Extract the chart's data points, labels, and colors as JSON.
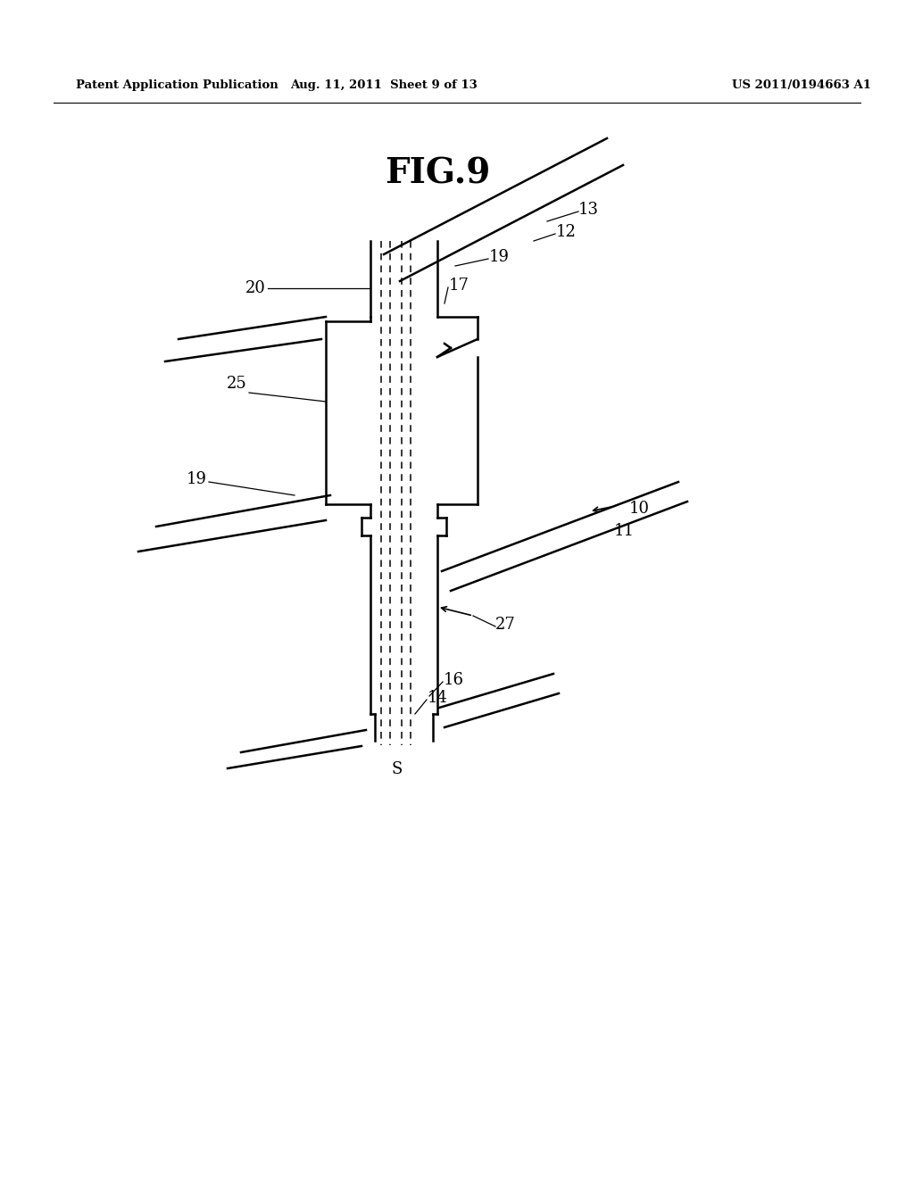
{
  "title": "FIG.9",
  "header_left": "Patent Application Publication",
  "header_mid": "Aug. 11, 2011  Sheet 9 of 13",
  "header_right": "US 2011/0194663 A1",
  "bg_color": "#ffffff",
  "line_color": "#000000",
  "fig_width": 10.24,
  "fig_height": 13.2,
  "dpi": 100
}
